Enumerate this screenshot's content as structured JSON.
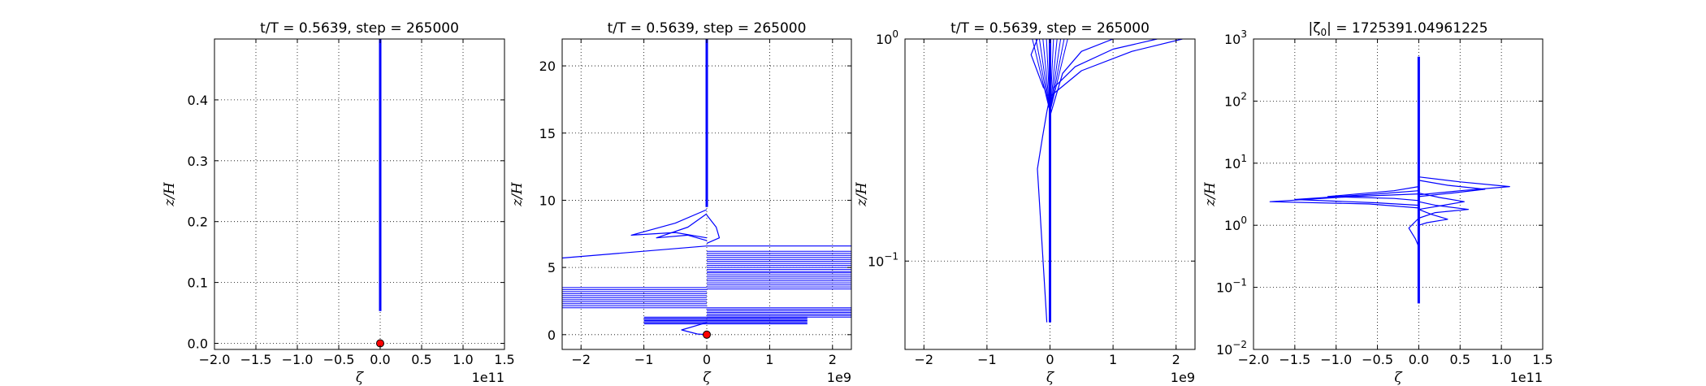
{
  "figure": {
    "background": "#ffffff",
    "line_color": "#0000ff",
    "marker_color": "#ff0000"
  },
  "chart_data": [
    {
      "type": "line",
      "title": "t/T = 0.5639, step = 265000",
      "xlabel": "ζ",
      "ylabel": "z/H",
      "x_offset_text": "1e11",
      "xlim": [
        -2.0,
        1.5
      ],
      "ylim": [
        -0.01,
        0.5
      ],
      "xticks": [
        -2.0,
        -1.5,
        -1.0,
        -0.5,
        0.0,
        0.5,
        1.0,
        1.5
      ],
      "xtick_labels": [
        "−2.0",
        "−1.5",
        "−1.0",
        "−0.5",
        "0.0",
        "0.5",
        "1.0",
        "1.5"
      ],
      "yticks": [
        0.0,
        0.1,
        0.2,
        0.3,
        0.4
      ],
      "ytick_labels": [
        "0.0",
        "0.1",
        "0.2",
        "0.3",
        "0.4"
      ],
      "grid": true,
      "series": [
        {
          "x": [
            0,
            0
          ],
          "y": [
            0.053,
            0.5
          ]
        }
      ],
      "marker": {
        "x": 0,
        "y": 0
      }
    },
    {
      "type": "line",
      "title": "t/T = 0.5639, step = 265000",
      "xlabel": "ζ",
      "ylabel": "z/H",
      "x_offset_text": "1e9",
      "xlim": [
        -2.3,
        2.3
      ],
      "ylim": [
        -1.1,
        22
      ],
      "xticks": [
        -2,
        -1,
        0,
        1,
        2
      ],
      "xtick_labels": [
        "−2",
        "−1",
        "0",
        "1",
        "2"
      ],
      "yticks": [
        0,
        5,
        10,
        15,
        20
      ],
      "ytick_labels": [
        "0",
        "5",
        "10",
        "15",
        "20"
      ],
      "grid": true,
      "series": [
        {
          "x": [
            0,
            0
          ],
          "y": [
            9.5,
            22
          ]
        },
        {
          "x": [
            -2.3,
            0,
            0,
            2.3
          ],
          "y": [
            5.7,
            6.6,
            6.6,
            6.6
          ]
        },
        {
          "x": [
            0,
            -0.5,
            -1.2,
            -0.5,
            0
          ],
          "y": [
            9.3,
            8.3,
            7.4,
            7.6,
            7.2
          ]
        },
        {
          "x": [
            0,
            -0.3,
            -0.8,
            -0.3,
            0
          ],
          "y": [
            9.0,
            8.0,
            7.2,
            7.4,
            7.0
          ]
        },
        {
          "x": [
            0,
            0.15,
            0.2,
            0.1,
            0
          ],
          "y": [
            8.9,
            8.0,
            7.2,
            7.0,
            6.8
          ]
        },
        {
          "x": [
            0,
            -0.4,
            -0.15,
            0
          ],
          "y": [
            0.9,
            0.35,
            0.05,
            0
          ]
        }
      ],
      "hbands": [
        {
          "y0": 3.4,
          "y1": 4.6,
          "x0": 0,
          "x1": 2.3
        },
        {
          "y0": 4.7,
          "y1": 6.2,
          "x0": 0,
          "x1": 2.3
        },
        {
          "y0": 1.3,
          "y1": 2.0,
          "x0": 0,
          "x1": 2.3
        },
        {
          "y0": 2.0,
          "y1": 3.5,
          "x0": -2.3,
          "x1": 0
        },
        {
          "y0": 0.8,
          "y1": 1.3,
          "x0": -1.0,
          "x1": 1.6
        }
      ],
      "marker": {
        "x": 0,
        "y": 0
      }
    },
    {
      "type": "line",
      "title": "t/T = 0.5639, step = 265000",
      "xlabel": "ζ",
      "ylabel": "z/H",
      "x_offset_text": "1e9",
      "xscale": "linear",
      "yscale": "log",
      "xlim": [
        -2.3,
        2.3
      ],
      "ylim": [
        0.04,
        1.0
      ],
      "xticks": [
        -2,
        -1,
        0,
        1,
        2
      ],
      "xtick_labels": [
        "−2",
        "−1",
        "0",
        "1",
        "2"
      ],
      "yticks": [
        0.1,
        1.0
      ],
      "ytick_labels": [
        [
          "10",
          "−1"
        ],
        [
          "10",
          "0"
        ]
      ],
      "grid": true,
      "series": [
        {
          "x": [
            0,
            0
          ],
          "y": [
            0.053,
            1.0
          ]
        },
        {
          "x": [
            -0.05,
            0,
            0.5,
            1.3,
            2.1
          ],
          "y": [
            0.47,
            0.55,
            0.72,
            0.88,
            1.0
          ]
        },
        {
          "x": [
            0.05,
            0.4,
            1.0,
            1.7
          ],
          "y": [
            0.6,
            0.75,
            0.9,
            1.0
          ]
        },
        {
          "x": [
            0,
            0.2,
            0.5,
            1.0
          ],
          "y": [
            0.45,
            0.7,
            0.88,
            1.0
          ]
        },
        {
          "x": [
            -0.1,
            -0.3,
            -0.2
          ],
          "y": [
            0.6,
            0.85,
            1.0
          ]
        },
        {
          "x": [
            -0.05,
            -0.2,
            -0.12,
            -0.05
          ],
          "y": [
            0.053,
            0.26,
            0.36,
            0.47
          ]
        }
      ],
      "fan": {
        "x_min": -0.28,
        "x_max": 0.28,
        "y_top": 1.0,
        "y_bottom": 0.47
      }
    },
    {
      "type": "line",
      "title": "|ζ₀| = 1725391.04961225",
      "title_parts": [
        "|ζ",
        "0",
        "| = 1725391.04961225"
      ],
      "xlabel": "ζ",
      "ylabel": "z/H",
      "x_offset_text": "1e11",
      "xscale": "linear",
      "yscale": "log",
      "xlim": [
        -2.0,
        1.5
      ],
      "ylim": [
        0.01,
        1000
      ],
      "xticks": [
        -2.0,
        -1.5,
        -1.0,
        -0.5,
        0.0,
        0.5,
        1.0,
        1.5
      ],
      "xtick_labels": [
        "−2.0",
        "−1.5",
        "−1.0",
        "−0.5",
        "0.0",
        "0.5",
        "1.0",
        "1.5"
      ],
      "yticks": [
        0.01,
        0.1,
        1,
        10,
        100,
        1000
      ],
      "ytick_labels": [
        [
          "10",
          "−2"
        ],
        [
          "10",
          "−1"
        ],
        [
          "10",
          "0"
        ],
        [
          "10",
          "1"
        ],
        [
          "10",
          "2"
        ],
        [
          "10",
          "3"
        ]
      ],
      "grid": true,
      "series": [
        {
          "x": [
            0,
            0
          ],
          "y": [
            0.055,
            520
          ]
        },
        {
          "x": [
            0,
            -0.8,
            -1.8,
            -0.6,
            0
          ],
          "y": [
            3.2,
            2.9,
            2.4,
            2.2,
            1.9
          ]
        },
        {
          "x": [
            0,
            -0.5,
            -1.5,
            -0.5,
            0
          ],
          "y": [
            3.6,
            3.2,
            2.6,
            2.3,
            2.1
          ]
        },
        {
          "x": [
            0,
            -0.3,
            -1.1,
            -0.3,
            0
          ],
          "y": [
            4.2,
            3.6,
            2.9,
            2.7,
            2.5
          ]
        },
        {
          "x": [
            0,
            0.5,
            1.1,
            0.5,
            0
          ],
          "y": [
            6.0,
            5.0,
            4.2,
            3.6,
            3.1
          ]
        },
        {
          "x": [
            0,
            0.35,
            0.8,
            0.4,
            0
          ],
          "y": [
            5.3,
            4.4,
            3.8,
            3.3,
            2.9
          ]
        },
        {
          "x": [
            0,
            0.25,
            0.55,
            0.3,
            0
          ],
          "y": [
            3.3,
            2.8,
            2.4,
            2.1,
            1.8
          ]
        },
        {
          "x": [
            0,
            0.2,
            0.6,
            0.2,
            0
          ],
          "y": [
            2.4,
            2.1,
            1.8,
            1.6,
            1.3
          ]
        },
        {
          "x": [
            0,
            0.15,
            0.35,
            0.1,
            0
          ],
          "y": [
            1.8,
            1.5,
            1.25,
            1.1,
            1.0
          ]
        },
        {
          "x": [
            0,
            -0.12,
            -0.04,
            0
          ],
          "y": [
            1.3,
            0.9,
            0.6,
            0.45
          ]
        }
      ]
    }
  ]
}
